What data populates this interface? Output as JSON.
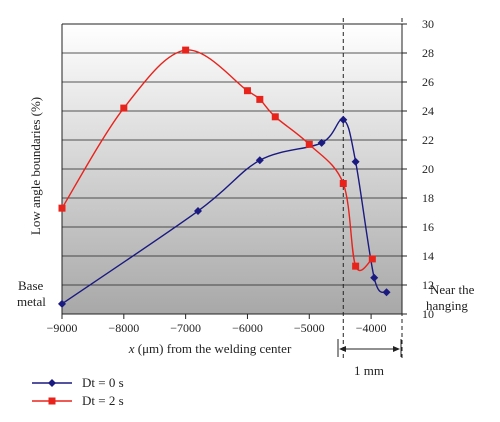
{
  "chart_data": {
    "type": "line",
    "xlabel_var": "x",
    "xlabel_unit": "(μm)",
    "xlabel_rest": " from the welding center",
    "ylabel": "Low angle boundaries (%)",
    "xlim": [
      -9000,
      -3500
    ],
    "ylim": [
      10,
      30
    ],
    "x_ticks": [
      "−9000",
      "−8000",
      "−7000",
      "−6000",
      "−5000",
      "−4000"
    ],
    "y_ticks": [
      "10",
      "12",
      "14",
      "16",
      "18",
      "20",
      "22",
      "24",
      "26",
      "28",
      "30"
    ],
    "left_annotation": [
      "Base",
      "metal"
    ],
    "right_annotation": [
      "Near the",
      "hanging"
    ],
    "bracket_label": "1 mm",
    "dashed_line_x": -4450,
    "background": "gradient white to gray, bands every 2%",
    "series": [
      {
        "name": "Dt = 0 s",
        "color": "#1a1a80",
        "marker": "diamond",
        "points": [
          {
            "x": -9000,
            "y": 10.7
          },
          {
            "x": -6800,
            "y": 17.1
          },
          {
            "x": -5800,
            "y": 20.6
          },
          {
            "x": -4800,
            "y": 21.8
          },
          {
            "x": -4450,
            "y": 23.4
          },
          {
            "x": -4250,
            "y": 20.5
          },
          {
            "x": -3950,
            "y": 12.5
          },
          {
            "x": -3750,
            "y": 11.5
          }
        ]
      },
      {
        "name": "Dt = 2 s",
        "color": "#e8231c",
        "marker": "square",
        "points": [
          {
            "x": -9000,
            "y": 17.3
          },
          {
            "x": -8000,
            "y": 24.2
          },
          {
            "x": -7000,
            "y": 28.2
          },
          {
            "x": -6000,
            "y": 25.4
          },
          {
            "x": -5800,
            "y": 24.8
          },
          {
            "x": -5550,
            "y": 23.6
          },
          {
            "x": -5000,
            "y": 21.7
          },
          {
            "x": -4450,
            "y": 19.0
          },
          {
            "x": -4250,
            "y": 13.3
          },
          {
            "x": -3980,
            "y": 13.8
          }
        ]
      }
    ]
  }
}
